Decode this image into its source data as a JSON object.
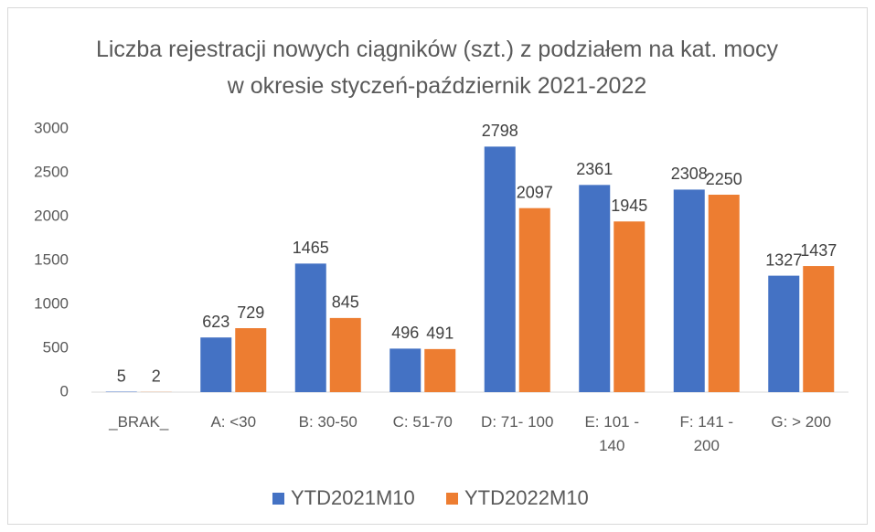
{
  "chart_data": {
    "type": "bar",
    "title": "Liczba rejestracji nowych ciągników (szt.) z podziałem na kat. mocy w okresie styczeń-październik 2021-2022",
    "categories": [
      "_BRAK_",
      "A: <30",
      "B: 30-50",
      "C: 51-70",
      "D: 71- 100",
      "E: 101 - 140",
      "F: 141 - 200",
      "G: > 200"
    ],
    "series": [
      {
        "name": "YTD2021M10",
        "color": "#4472c4",
        "values": [
          5,
          623,
          1465,
          496,
          2798,
          2361,
          2308,
          1327
        ]
      },
      {
        "name": "YTD2022M10",
        "color": "#ed7d31",
        "values": [
          2,
          729,
          845,
          491,
          2097,
          1945,
          2250,
          1437
        ]
      }
    ],
    "ylim": [
      0,
      3000
    ],
    "yticks": [
      0,
      500,
      1000,
      1500,
      2000,
      2500,
      3000
    ],
    "grid": false,
    "legend": "bottom"
  }
}
